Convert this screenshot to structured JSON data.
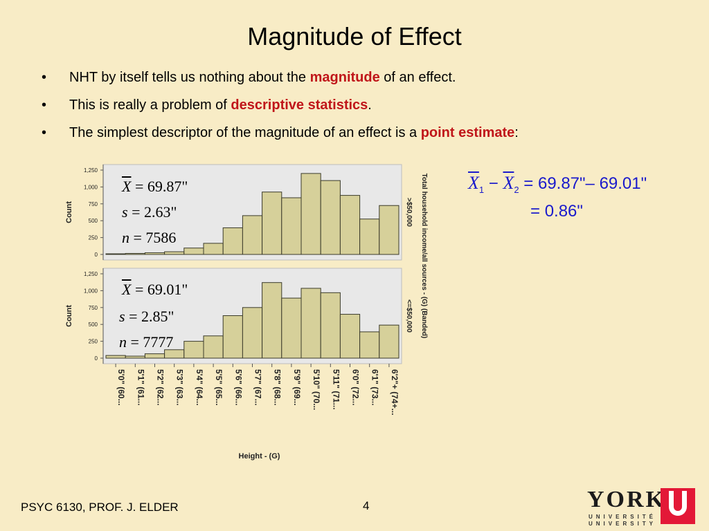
{
  "slide": {
    "title": "Magnitude of Effect",
    "bullets": [
      {
        "marker": "•",
        "pre": "NHT by itself tells us nothing about the ",
        "highlight": "magnitude",
        "post": " of an effect."
      },
      {
        "marker": "•",
        "pre": "This is really a problem of ",
        "highlight": "descriptive statistics",
        "post": "."
      },
      {
        "marker": "•",
        "pre": "The simplest descriptor of the magnitude of an effect is a ",
        "highlight": "point estimate",
        "post": ":"
      }
    ],
    "footer": "PSYC 6130, PROF. J. ELDER",
    "page_number": "4",
    "colors": {
      "background": "#f8ecc6",
      "highlight": "#c0161a",
      "equation": "#1a1acc",
      "bar_fill": "#d6d09a",
      "plot_bg": "#e8e8e8"
    }
  },
  "logo": {
    "word": "YORK",
    "line1": "UNIVERSITÉ",
    "line2": "UNIVERSITY"
  },
  "stats": {
    "top": {
      "mean": "69.87\"",
      "sd": "2.63\"",
      "n": "7586"
    },
    "bottom": {
      "mean": "69.01\"",
      "sd": "2.85\"",
      "n": "7777"
    }
  },
  "difference": {
    "line1_rhs": "69.87\"– 69.01\"",
    "line2_rhs": "0.86\""
  },
  "chart_data": {
    "type": "bar",
    "xlabel": "Height - (G)",
    "ylabel": "Count",
    "panel_title": "Total household income/all sources - (G) (Banded)",
    "ylim": [
      0,
      1250
    ],
    "yticks": [
      "0",
      "250",
      "500",
      "750",
      "1,000",
      "1,250"
    ],
    "categories": [
      "5'0\" (60...",
      "5'1\" (61...",
      "5'2\" (62...",
      "5'3\" (63...",
      "5'4\" (64...",
      "5'5\" (65...",
      "5'6\" (66...",
      "5'7\" (67...",
      "5'8\" (68...",
      "5'9\" (69...",
      "5'10\" (70...",
      "5'11\" (71...",
      "6'0\" (72...",
      "6'1\" (73...",
      "6'2\"+ (74+..."
    ],
    "series": [
      {
        "name": ">$50,000",
        "values": [
          10,
          15,
          25,
          40,
          95,
          165,
          395,
          575,
          925,
          840,
          1200,
          1095,
          875,
          525,
          725
        ]
      },
      {
        "name": "<=$50,000",
        "values": [
          40,
          30,
          65,
          125,
          250,
          330,
          630,
          750,
          1120,
          890,
          1035,
          970,
          650,
          390,
          490
        ]
      }
    ],
    "grid": false
  }
}
